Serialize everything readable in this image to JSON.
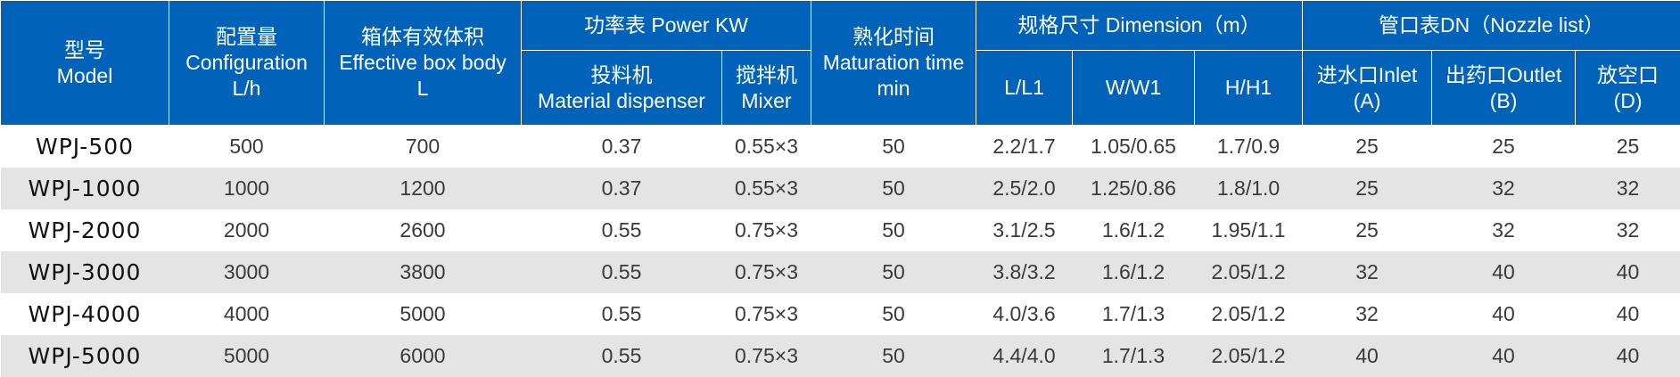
{
  "headers": {
    "model": {
      "zh": "型号",
      "en": "Model"
    },
    "configuration": {
      "zh": "配置量",
      "en": "Configuration",
      "unit": "L/h"
    },
    "effective_volume": {
      "zh": "箱体有效体积",
      "en": "Effective box body",
      "unit": "L"
    },
    "power": {
      "title": "功率表 Power KW",
      "dispenser_zh": "投料机",
      "dispenser_en": "Material dispenser",
      "mixer_zh": "搅拌机",
      "mixer_en": "Mixer"
    },
    "maturation": {
      "zh": "熟化时间",
      "en": "Maturation time",
      "unit": "min"
    },
    "dimension": {
      "title": "规格尺寸 Dimension（m）",
      "l": "L/L1",
      "w": "W/W1",
      "h": "H/H1"
    },
    "nozzle": {
      "title": "管口表DN（Nozzle list）",
      "inlet_1": "进水口Inlet",
      "inlet_2": "(A)",
      "outlet_1": "出药口Outlet",
      "outlet_2": "(B)",
      "vent_1": "放空口",
      "vent_2": "(D)"
    }
  },
  "rows": [
    [
      "WPJ-500",
      "500",
      "700",
      "0.37",
      "0.55×3",
      "50",
      "2.2/1.7",
      "1.05/0.65",
      "1.7/0.9",
      "25",
      "25",
      "25"
    ],
    [
      "WPJ-1000",
      "1000",
      "1200",
      "0.37",
      "0.55×3",
      "50",
      "2.5/2.0",
      "1.25/0.86",
      "1.8/1.0",
      "25",
      "32",
      "32"
    ],
    [
      "WPJ-2000",
      "2000",
      "2600",
      "0.55",
      "0.75×3",
      "50",
      "3.1/2.5",
      "1.6/1.2",
      "1.95/1.1",
      "25",
      "32",
      "32"
    ],
    [
      "WPJ-3000",
      "3000",
      "3800",
      "0.55",
      "0.75×3",
      "50",
      "3.8/3.2",
      "1.6/1.2",
      "2.05/1.2",
      "32",
      "40",
      "40"
    ],
    [
      "WPJ-4000",
      "4000",
      "5000",
      "0.55",
      "0.75×3",
      "50",
      "4.0/3.6",
      "1.7/1.3",
      "2.05/1.2",
      "32",
      "40",
      "40"
    ],
    [
      "WPJ-5000",
      "5000",
      "6000",
      "0.55",
      "0.75×3",
      "50",
      "4.4/4.0",
      "1.7/1.3",
      "2.05/1.2",
      "40",
      "40",
      "40"
    ]
  ],
  "colors": {
    "header_bg": "#0062b8",
    "row_alt_bg": "#e4e4e4"
  }
}
